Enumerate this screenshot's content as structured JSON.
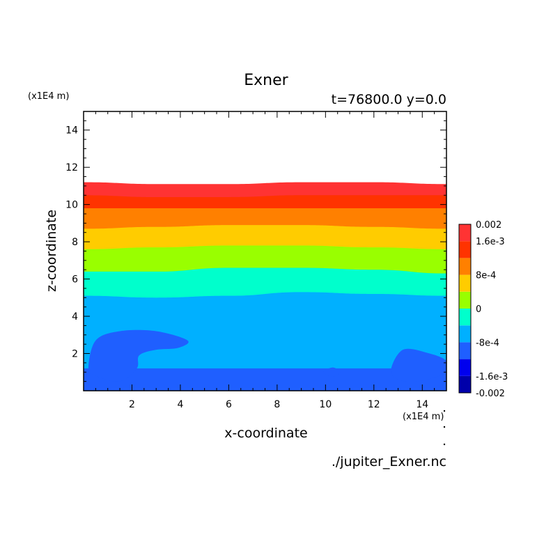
{
  "chart_data": {
    "type": "contour",
    "title": "Exner",
    "subtitle": "t=76800.0 y=0.0",
    "xlabel": "x-coordinate",
    "ylabel": "z-coordinate",
    "x_unit": "(x1E4 m)",
    "y_unit": "(x1E4 m)",
    "source": "./jupiter_Exner.nc",
    "xlim": [
      0,
      15
    ],
    "ylim": [
      0,
      15
    ],
    "x_ticks": [
      "2",
      "4",
      "6",
      "8",
      "10",
      "12",
      "14"
    ],
    "y_ticks": [
      "2",
      "4",
      "6",
      "8",
      "10",
      "12",
      "14"
    ],
    "colorbar": {
      "labels": [
        "0.002",
        "1.6e-3",
        "8e-4",
        "0",
        "-8e-4",
        "-1.6e-3",
        "-0.002"
      ],
      "levels": [
        -0.002,
        -0.0016,
        -0.0012,
        -0.0008,
        -0.0004,
        0,
        0.0004,
        0.0008,
        0.0012,
        0.0016,
        0.002
      ],
      "colors": [
        "#0000aa",
        "#0000ee",
        "#1f5fff",
        "#00b0ff",
        "#00ffcc",
        "#99ff00",
        "#ffcc00",
        "#ff8000",
        "#ff3300",
        "#ff3333"
      ]
    },
    "bands": [
      {
        "name": "-1.2e-3 to -8e-4",
        "color": "#1f5fff",
        "top": [
          [
            0,
            1.2
          ],
          [
            15,
            1.2
          ]
        ]
      },
      {
        "name": "-8e-4 to -4e-4",
        "color": "#00b0ff",
        "top": [
          [
            0,
            5.1
          ],
          [
            3,
            5.0
          ],
          [
            6,
            5.1
          ],
          [
            9,
            5.3
          ],
          [
            12,
            5.2
          ],
          [
            15,
            5.1
          ]
        ]
      },
      {
        "name": "-4e-4 to 0",
        "color": "#00ffcc",
        "top": [
          [
            0,
            6.4
          ],
          [
            3,
            6.4
          ],
          [
            6,
            6.6
          ],
          [
            9,
            6.6
          ],
          [
            12,
            6.5
          ],
          [
            15,
            6.3
          ]
        ]
      },
      {
        "name": "0 to 4e-4",
        "color": "#99ff00",
        "top": [
          [
            0,
            7.6
          ],
          [
            3,
            7.7
          ],
          [
            6,
            7.8
          ],
          [
            9,
            7.8
          ],
          [
            12,
            7.7
          ],
          [
            15,
            7.6
          ]
        ]
      },
      {
        "name": "4e-4 to 8e-4",
        "color": "#ffcc00",
        "top": [
          [
            0,
            8.7
          ],
          [
            3,
            8.8
          ],
          [
            6,
            8.9
          ],
          [
            9,
            8.9
          ],
          [
            12,
            8.8
          ],
          [
            15,
            8.7
          ]
        ]
      },
      {
        "name": "8e-4 to 1.2e-3",
        "color": "#ff8000",
        "top": [
          [
            0,
            9.8
          ],
          [
            3,
            9.8
          ],
          [
            6,
            9.8
          ],
          [
            9,
            9.8
          ],
          [
            12,
            9.8
          ],
          [
            15,
            9.8
          ]
        ]
      },
      {
        "name": "1.2e-3 to 1.6e-3",
        "color": "#ff3300",
        "top": [
          [
            0,
            10.5
          ],
          [
            3,
            10.4
          ],
          [
            6,
            10.4
          ],
          [
            9,
            10.5
          ],
          [
            12,
            10.5
          ],
          [
            15,
            10.5
          ]
        ]
      },
      {
        "name": "1.6e-3 to 2e-3",
        "color": "#ff3333",
        "top": [
          [
            0,
            11.2
          ],
          [
            3,
            11.1
          ],
          [
            6,
            11.1
          ],
          [
            9,
            11.2
          ],
          [
            12,
            11.2
          ],
          [
            15,
            11.1
          ]
        ]
      }
    ],
    "blobs": [
      {
        "color": "#1f5fff",
        "outline": [
          [
            0.2,
            1.2
          ],
          [
            0.5,
            2.7
          ],
          [
            1.5,
            3.2
          ],
          [
            3,
            3.2
          ],
          [
            4.3,
            2.7
          ],
          [
            3.9,
            2.3
          ],
          [
            3,
            2.2
          ],
          [
            2.3,
            1.9
          ],
          [
            2.2,
            1.2
          ],
          [
            1.5,
            0.5
          ],
          [
            0.5,
            0.8
          ]
        ]
      },
      {
        "color": "#1f5fff",
        "outline": [
          [
            9.9,
            1.0
          ],
          [
            10.3,
            1.25
          ],
          [
            10.6,
            1.0
          ],
          [
            10.3,
            0.75
          ]
        ]
      },
      {
        "color": "#1f5fff",
        "outline": [
          [
            12.7,
            1.0
          ],
          [
            13.2,
            2.2
          ],
          [
            14.3,
            2.0
          ],
          [
            15,
            1.6
          ],
          [
            15,
            1.0
          ],
          [
            14.2,
            0.6
          ],
          [
            13.3,
            0.5
          ]
        ]
      }
    ],
    "legend": "colorbar-right",
    "grid": false
  }
}
